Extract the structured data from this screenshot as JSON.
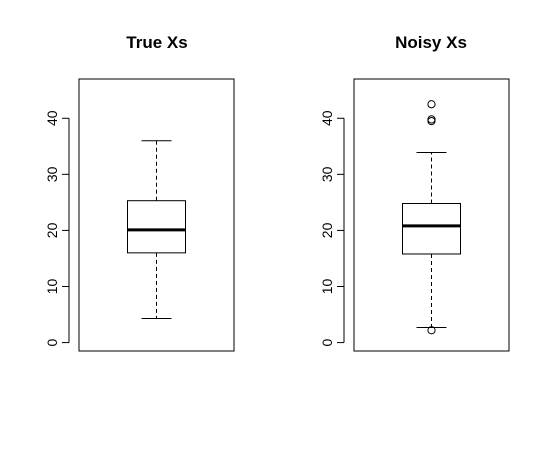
{
  "chart_data": [
    {
      "type": "boxplot",
      "title": "True Xs",
      "ylim": [
        -1.5,
        47
      ],
      "yticks": [
        0,
        10,
        20,
        30,
        40
      ],
      "box": {
        "whisker_low": 4.3,
        "q1": 16.0,
        "median": 20.1,
        "q3": 25.3,
        "whisker_high": 36.0
      },
      "outliers": []
    },
    {
      "type": "boxplot",
      "title": "Noisy Xs",
      "ylim": [
        -1.5,
        47
      ],
      "yticks": [
        0,
        10,
        20,
        30,
        40
      ],
      "box": {
        "whisker_low": 2.7,
        "q1": 15.8,
        "median": 20.8,
        "q3": 24.8,
        "whisker_high": 33.9
      },
      "outliers": [
        2.2,
        39.5,
        39.8,
        42.5
      ]
    }
  ]
}
